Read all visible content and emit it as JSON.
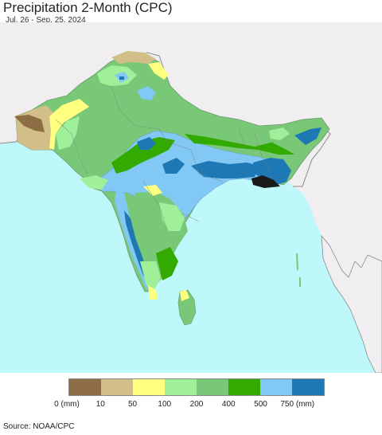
{
  "title": "Precipitation 2-Month (CPC)",
  "subtitle": "Jul. 26 - Sep. 25, 2024",
  "source": "Source: NOAA/CPC",
  "legend": {
    "colors": [
      "#8c6d44",
      "#d2be88",
      "#ffff80",
      "#a0f09a",
      "#78c878",
      "#32aa00",
      "#82c8f5",
      "#1e78b4"
    ],
    "labels": [
      "0 (mm)",
      "10",
      "50",
      "100",
      "200",
      "400",
      "500",
      "750 (mm)"
    ]
  },
  "map_colors": {
    "ocean": "#bff8fb",
    "land_outside": "#f1eef2",
    "border": "#808080"
  }
}
